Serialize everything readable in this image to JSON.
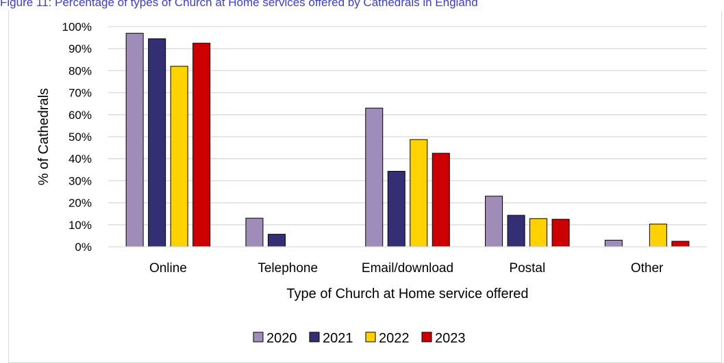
{
  "caption": "Figure 11: Percentage of types of Church at Home services offered by Cathedrals in England",
  "chart_data": {
    "type": "bar",
    "categories": [
      "Online",
      "Telephone",
      "Email/download",
      "Postal",
      "Other"
    ],
    "series": [
      {
        "name": "2020",
        "color": "#a08cb9",
        "values": [
          97,
          13,
          63,
          23,
          3
        ]
      },
      {
        "name": "2021",
        "color": "#342f74",
        "values": [
          94.5,
          5.7,
          34.3,
          14.3,
          0
        ]
      },
      {
        "name": "2022",
        "color": "#ffd200",
        "values": [
          82,
          0,
          48.7,
          12.8,
          10.3
        ]
      },
      {
        "name": "2023",
        "color": "#cc0000",
        "values": [
          92.5,
          0,
          42.5,
          12.5,
          2.5
        ]
      }
    ],
    "xlabel": "Type of Church at Home service offered",
    "ylabel": "% of Cathedrals",
    "ylim": [
      0,
      100
    ],
    "yticks": [
      "0%",
      "10%",
      "20%",
      "30%",
      "40%",
      "50%",
      "60%",
      "70%",
      "80%",
      "90%",
      "100%"
    ],
    "grid": true,
    "legend_position": "bottom"
  }
}
